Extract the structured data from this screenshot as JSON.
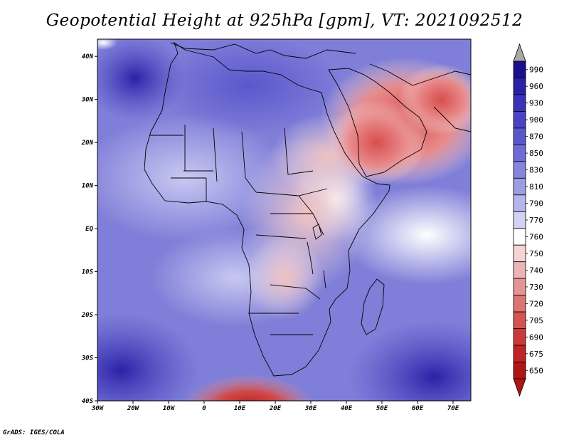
{
  "title": "Geopotential Height at 925hPa [gpm], VT: 2021092512",
  "credit": "GrADS: IGES/COLA",
  "map": {
    "lat_labels": [
      "40N",
      "30N",
      "20N",
      "10N",
      "EQ",
      "10S",
      "20S",
      "30S",
      "40S"
    ],
    "lon_labels": [
      "30W",
      "20W",
      "10W",
      "0",
      "10E",
      "20E",
      "30E",
      "40E",
      "50E",
      "60E",
      "70E"
    ],
    "lat_range": [
      -40,
      44
    ],
    "lon_range": [
      -30,
      75
    ]
  },
  "colorbar": {
    "labels": [
      "990",
      "960",
      "930",
      "900",
      "870",
      "850",
      "830",
      "810",
      "790",
      "770",
      "760",
      "750",
      "740",
      "730",
      "720",
      "705",
      "690",
      "675",
      "650"
    ],
    "colors": [
      "#1a0f8c",
      "#2b21a6",
      "#3a33b8",
      "#4a44c4",
      "#5a57cc",
      "#6e6cd4",
      "#8585dc",
      "#9d9de4",
      "#b6b6ec",
      "#d2d2f4",
      "#ffffff",
      "#f4d4d4",
      "#ecb4b4",
      "#e49494",
      "#dc7474",
      "#d45454",
      "#cc3838",
      "#c02424",
      "#b01414"
    ],
    "top_arrow_color": "#a8a8a8",
    "bottom_arrow_color": "#b01414"
  }
}
